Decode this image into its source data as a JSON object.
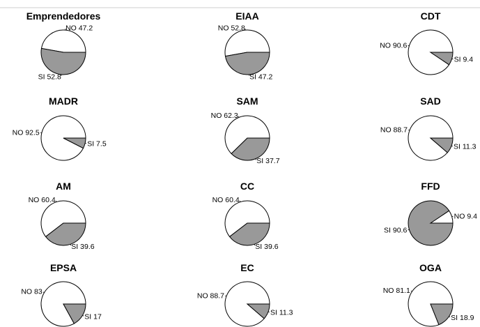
{
  "chart_data": [
    {
      "type": "pie",
      "title": "Emprendedores",
      "categories": [
        "NO",
        "SI"
      ],
      "values": [
        47.2,
        52.8
      ],
      "labels": [
        "NO 47.2",
        "SI 52.8"
      ],
      "colors": [
        "#ffffff",
        "#999999"
      ]
    },
    {
      "type": "pie",
      "title": "EIAA",
      "categories": [
        "NO",
        "SI"
      ],
      "values": [
        52.8,
        47.2
      ],
      "labels": [
        "NO 52.8",
        "SI 47.2"
      ],
      "colors": [
        "#ffffff",
        "#999999"
      ]
    },
    {
      "type": "pie",
      "title": "CDT",
      "categories": [
        "NO",
        "SI"
      ],
      "values": [
        90.6,
        9.4
      ],
      "labels": [
        "NO 90.6",
        "SI 9.4"
      ],
      "colors": [
        "#ffffff",
        "#999999"
      ]
    },
    {
      "type": "pie",
      "title": "MADR",
      "categories": [
        "NO",
        "SI"
      ],
      "values": [
        92.5,
        7.5
      ],
      "labels": [
        "NO 92.5",
        "SI 7.5"
      ],
      "colors": [
        "#ffffff",
        "#999999"
      ]
    },
    {
      "type": "pie",
      "title": "SAM",
      "categories": [
        "NO",
        "SI"
      ],
      "values": [
        62.3,
        37.7
      ],
      "labels": [
        "NO 62.3",
        "SI 37.7"
      ],
      "colors": [
        "#ffffff",
        "#999999"
      ]
    },
    {
      "type": "pie",
      "title": "SAD",
      "categories": [
        "NO",
        "SI"
      ],
      "values": [
        88.7,
        11.3
      ],
      "labels": [
        "NO 88.7",
        "SI 11.3"
      ],
      "colors": [
        "#ffffff",
        "#999999"
      ]
    },
    {
      "type": "pie",
      "title": "AM",
      "categories": [
        "NO",
        "SI"
      ],
      "values": [
        60.4,
        39.6
      ],
      "labels": [
        "NO 60.4",
        "SI 39.6"
      ],
      "colors": [
        "#ffffff",
        "#999999"
      ]
    },
    {
      "type": "pie",
      "title": "CC",
      "categories": [
        "NO",
        "SI"
      ],
      "values": [
        60.4,
        39.6
      ],
      "labels": [
        "NO 60.4",
        "SI 39.6"
      ],
      "colors": [
        "#ffffff",
        "#999999"
      ]
    },
    {
      "type": "pie",
      "title": "FFD",
      "categories": [
        "NO",
        "SI"
      ],
      "values": [
        9.4,
        90.6
      ],
      "labels": [
        "NO 9.4",
        "SI 90.6"
      ],
      "colors": [
        "#ffffff",
        "#999999"
      ]
    },
    {
      "type": "pie",
      "title": "EPSA",
      "categories": [
        "NO",
        "SI"
      ],
      "values": [
        83,
        17
      ],
      "labels": [
        "NO 83",
        "SI 17"
      ],
      "colors": [
        "#ffffff",
        "#999999"
      ]
    },
    {
      "type": "pie",
      "title": "EC",
      "categories": [
        "NO",
        "SI"
      ],
      "values": [
        88.7,
        11.3
      ],
      "labels": [
        "NO 88.7",
        "SI 11.3"
      ],
      "colors": [
        "#ffffff",
        "#999999"
      ]
    },
    {
      "type": "pie",
      "title": "OGA",
      "categories": [
        "NO",
        "SI"
      ],
      "values": [
        81.1,
        18.9
      ],
      "labels": [
        "NO 81.1",
        "SI 18.9"
      ],
      "colors": [
        "#ffffff",
        "#999999"
      ]
    }
  ]
}
